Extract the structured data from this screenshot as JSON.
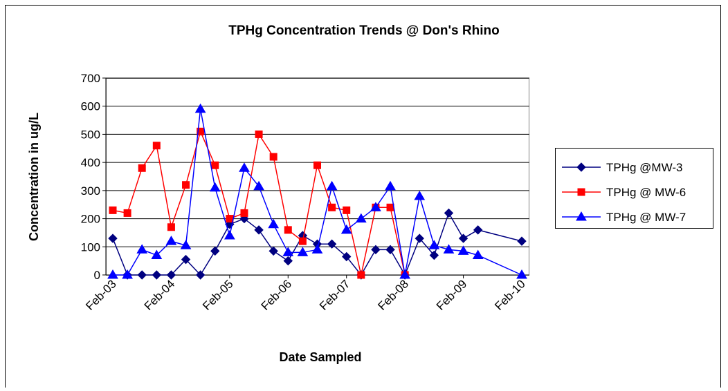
{
  "chart_data": {
    "type": "line",
    "title": "TPHg Concentration Trends @ Don's Rhino",
    "x_label": "Date Sampled",
    "y_label": "Concentration in ug/L",
    "x": [
      "2003-02",
      "2003-05",
      "2003-08",
      "2003-11",
      "2004-02",
      "2004-05",
      "2004-08",
      "2004-11",
      "2005-02",
      "2005-05",
      "2005-08",
      "2005-11",
      "2006-02",
      "2006-05",
      "2006-08",
      "2006-11",
      "2007-02",
      "2007-05",
      "2007-08",
      "2007-11",
      "2008-02",
      "2008-05",
      "2008-08",
      "2008-11",
      "2009-02",
      "2009-05",
      "2010-02"
    ],
    "xlim": [
      "2003-02",
      "2010-02"
    ],
    "xticks": [
      {
        "value": "2003-02",
        "label": "Feb-03"
      },
      {
        "value": "2004-02",
        "label": "Feb-04"
      },
      {
        "value": "2005-02",
        "label": "Feb-05"
      },
      {
        "value": "2006-02",
        "label": "Feb-06"
      },
      {
        "value": "2007-02",
        "label": "Feb-07"
      },
      {
        "value": "2008-02",
        "label": "Feb-08"
      },
      {
        "value": "2009-02",
        "label": "Feb-09"
      },
      {
        "value": "2010-02",
        "label": "Feb-10"
      }
    ],
    "ylim": [
      0,
      700
    ],
    "yticks": [
      0,
      100,
      200,
      300,
      400,
      500,
      600,
      700
    ],
    "grid": true,
    "legend": "right",
    "series": [
      {
        "name": "TPHg @MW-3",
        "color": "#000080",
        "marker": "diamond",
        "values": [
          130,
          0,
          0,
          0,
          0,
          55,
          0,
          85,
          180,
          200,
          160,
          85,
          50,
          140,
          110,
          110,
          65,
          0,
          90,
          90,
          0,
          130,
          70,
          220,
          130,
          160,
          120
        ]
      },
      {
        "name": "TPHg @ MW-6",
        "color": "#ff0000",
        "marker": "square",
        "values": [
          230,
          220,
          380,
          460,
          170,
          320,
          510,
          390,
          200,
          220,
          500,
          420,
          160,
          120,
          390,
          240,
          230,
          0,
          240,
          240,
          0,
          null,
          null,
          null,
          null,
          null,
          null
        ]
      },
      {
        "name": "TPHg @ MW-7",
        "color": "#0000ff",
        "marker": "triangle",
        "values": [
          0,
          0,
          90,
          70,
          120,
          105,
          590,
          310,
          140,
          380,
          315,
          180,
          80,
          80,
          90,
          315,
          160,
          200,
          240,
          315,
          0,
          280,
          105,
          90,
          85,
          70,
          0
        ]
      }
    ]
  }
}
